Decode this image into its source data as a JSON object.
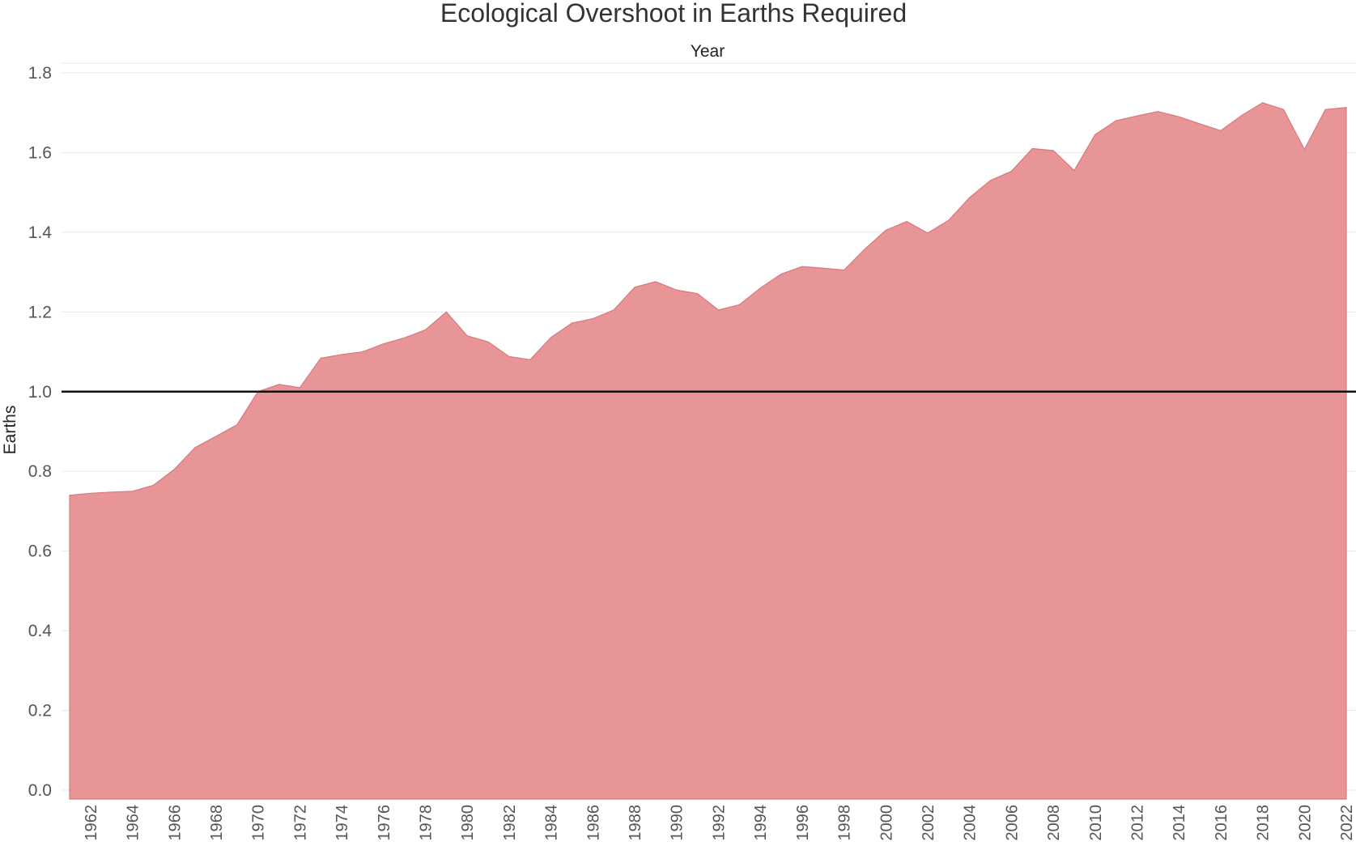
{
  "chart_data": {
    "type": "area",
    "title": "Ecological Overshoot in Earths Required",
    "xlabel": "Year",
    "ylabel": "Earths",
    "xlim": [
      1961,
      2022
    ],
    "ylim": [
      0,
      1.8
    ],
    "y_ticks": [
      0.0,
      0.2,
      0.4,
      0.6,
      0.8,
      1.0,
      1.2,
      1.4,
      1.6,
      1.8
    ],
    "y_tick_labels": [
      "0.0",
      "0.2",
      "0.4",
      "0.6",
      "0.8",
      "1.0",
      "1.2",
      "1.4",
      "1.6",
      "1.8"
    ],
    "x_ticks": [
      1962,
      1964,
      1966,
      1968,
      1970,
      1972,
      1974,
      1976,
      1978,
      1980,
      1982,
      1984,
      1986,
      1988,
      1990,
      1992,
      1994,
      1996,
      1998,
      2000,
      2002,
      2004,
      2006,
      2008,
      2010,
      2012,
      2014,
      2016,
      2018,
      2020,
      2022
    ],
    "x_tick_labels": [
      "1962",
      "1964",
      "1966",
      "1968",
      "1970",
      "1972",
      "1974",
      "1976",
      "1978",
      "1980",
      "1982",
      "1984",
      "1986",
      "1988",
      "1990",
      "1992",
      "1994",
      "1996",
      "1998",
      "2000",
      "2002",
      "2004",
      "2006",
      "2008",
      "2010",
      "2012",
      "2014",
      "2016",
      "2018",
      "2020",
      "2022"
    ],
    "x": [
      1961,
      1962,
      1963,
      1964,
      1965,
      1966,
      1967,
      1968,
      1969,
      1970,
      1971,
      1972,
      1973,
      1974,
      1975,
      1976,
      1977,
      1978,
      1979,
      1980,
      1981,
      1982,
      1983,
      1984,
      1985,
      1986,
      1987,
      1988,
      1989,
      1990,
      1991,
      1992,
      1993,
      1994,
      1995,
      1996,
      1997,
      1998,
      1999,
      2000,
      2001,
      2002,
      2003,
      2004,
      2005,
      2006,
      2007,
      2008,
      2009,
      2010,
      2011,
      2012,
      2013,
      2014,
      2015,
      2016,
      2017,
      2018,
      2019,
      2020,
      2021,
      2022
    ],
    "values": [
      0.74,
      0.745,
      0.748,
      0.75,
      0.765,
      0.805,
      0.86,
      0.888,
      0.917,
      1.0,
      1.018,
      1.01,
      1.084,
      1.093,
      1.1,
      1.12,
      1.135,
      1.155,
      1.2,
      1.14,
      1.125,
      1.088,
      1.08,
      1.136,
      1.172,
      1.183,
      1.205,
      1.262,
      1.276,
      1.255,
      1.246,
      1.205,
      1.218,
      1.26,
      1.295,
      1.314,
      1.31,
      1.305,
      1.358,
      1.405,
      1.427,
      1.398,
      1.43,
      1.487,
      1.53,
      1.553,
      1.61,
      1.605,
      1.555,
      1.645,
      1.68,
      1.692,
      1.703,
      1.69,
      1.672,
      1.655,
      1.693,
      1.725,
      1.708,
      1.608,
      1.708,
      1.713
    ],
    "reference_line": 1.0,
    "grid": true,
    "colors": {
      "area": "#e68a8d",
      "reference": "#111111",
      "grid": "#e8e8e8"
    }
  }
}
